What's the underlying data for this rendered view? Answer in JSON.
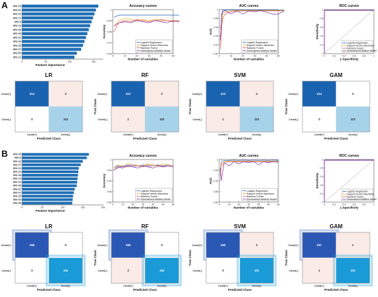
{
  "panels": [
    {
      "label": "A",
      "feature_importance": {
        "xlabel": "Feature importance",
        "features": [
          "MSI 25",
          "MSI 52",
          "MSI 42",
          "MSI 72",
          "MSI 8",
          "MSI 16",
          "MSI 38",
          "MSI 45",
          "MSI 51",
          "MSI 34",
          "MSI 28",
          "MSI 37",
          "MSI 50",
          "MSI 21"
        ],
        "values": [
          160,
          155,
          152,
          149,
          146,
          143,
          140,
          137,
          134,
          131,
          128,
          124,
          115,
          110
        ],
        "xticks": [
          "0",
          "50",
          "100",
          "150"
        ],
        "xmax": 170
      },
      "accuracy": {
        "title": "Accuracy curves",
        "xlabel": "Number of variables",
        "ylabel": "Accuracy",
        "x_ticks": [
          "0",
          "10",
          "20",
          "30",
          "40",
          "50"
        ],
        "y_ticks": [
          "0.96",
          "0.97",
          "0.98",
          "0.99",
          "1"
        ]
      },
      "auc": {
        "title": "AUC curves",
        "xlabel": "Number of variables",
        "ylabel": "AUC",
        "x_ticks": [
          "0",
          "10",
          "20",
          "30",
          "40",
          "50"
        ],
        "y_ticks": [
          "0.90",
          "0.92",
          "0.94",
          "0.96",
          "0.98",
          "1"
        ]
      },
      "roc": {
        "title": "ROC curves",
        "xlabel": "1-Specificity",
        "ylabel": "Sensitivity",
        "ticks": [
          "0",
          "0.2",
          "0.4",
          "0.6",
          "0.8",
          "1"
        ]
      },
      "confusion_matrices": [
        {
          "title": "LR",
          "values": [
            [
              414,
              3
            ],
            [
              0,
              114
            ]
          ]
        },
        {
          "title": "RF",
          "values": [
            [
              413,
              2
            ],
            [
              1,
              115
            ]
          ]
        },
        {
          "title": "SVM",
          "values": [
            [
              413,
              4
            ],
            [
              1,
              113
            ]
          ]
        },
        {
          "title": "GAM",
          "values": [
            [
              414,
              0
            ],
            [
              0,
              113
            ]
          ]
        }
      ]
    },
    {
      "label": "B",
      "feature_importance": {
        "xlabel": "Feature importance",
        "features": [
          "MSI 33",
          "MSI 8",
          "MSI 42",
          "MSI 37",
          "MSI 10",
          "MSI 24",
          "MSI 28",
          "MSI 13",
          "MSI 16",
          "MSI 48",
          "MSI 51",
          "MSI 57",
          "MSI 20",
          "MSI 35",
          "MSI 38"
        ],
        "values": [
          165,
          160,
          150,
          145,
          140,
          139,
          138,
          137,
          136,
          135,
          130,
          128,
          126,
          125,
          124
        ],
        "xticks": [
          "0",
          "50",
          "100",
          "150",
          "200"
        ],
        "xmax": 200
      },
      "accuracy": {
        "title": "Accuracy curves",
        "xlabel": "Number of variables",
        "ylabel": "Accuracy",
        "x_ticks": [
          "0",
          "10",
          "20",
          "30",
          "40",
          "50",
          "60"
        ],
        "y_ticks": [
          "0.80",
          "0.85",
          "0.90",
          "0.95",
          "1"
        ]
      },
      "auc": {
        "title": "AUC curves",
        "xlabel": "Number of variables",
        "ylabel": "AUC",
        "x_ticks": [
          "0",
          "10",
          "20",
          "30",
          "40",
          "50",
          "60"
        ],
        "y_ticks": [
          "0.80",
          "0.85",
          "0.90",
          "0.95",
          "1"
        ]
      },
      "roc": {
        "title": "ROC curves",
        "xlabel": "1-Specificity",
        "ylabel": "Sensitivity",
        "ticks": [
          "0",
          "0.2",
          "0.4",
          "0.6",
          "0.8",
          "1"
        ]
      },
      "confusion_matrices": [
        {
          "title": "LR",
          "values": [
            [
              258,
              0
            ],
            [
              0,
              102
            ]
          ]
        },
        {
          "title": "RF",
          "values": [
            [
              258,
              0
            ],
            [
              2,
              102
            ]
          ]
        },
        {
          "title": "SVM",
          "values": [
            [
              258,
              1
            ],
            [
              0,
              101
            ]
          ]
        },
        {
          "title": "GAM",
          "values": [
            [
              257,
              1
            ],
            [
              1,
              101
            ]
          ]
        }
      ]
    }
  ],
  "legend": [
    "Logistic Regression",
    "Support Vector Machines",
    "Random Forest",
    "Generalized Additive Model"
  ],
  "series_colors": [
    "#1f5fbf",
    "#e8a21c",
    "#d9534f",
    "#7b2d9b"
  ],
  "cm_labels": {
    "true_class": "True Class",
    "predicted_class": "Predicted Class",
    "pos": "Covid(+)",
    "neg": "Covid(-)"
  },
  "chart_data": [
    {
      "type": "bar",
      "title": "",
      "xlabel": "Feature importance",
      "categories": [
        "MSI 25",
        "MSI 52",
        "MSI 42",
        "MSI 72",
        "MSI 8",
        "MSI 16",
        "MSI 38",
        "MSI 45",
        "MSI 51",
        "MSI 34",
        "MSI 28",
        "MSI 37",
        "MSI 50",
        "MSI 21"
      ],
      "values": [
        160,
        155,
        152,
        149,
        146,
        143,
        140,
        137,
        134,
        131,
        128,
        124,
        115,
        110
      ]
    },
    {
      "type": "line",
      "title": "Accuracy curves",
      "xlabel": "Number of variables",
      "ylabel": "Accuracy",
      "ylim": [
        0.96,
        1
      ],
      "x": [
        1,
        5,
        10,
        15,
        20,
        25,
        30,
        35,
        40,
        45,
        50,
        55
      ],
      "series": [
        {
          "name": "Logistic Regression",
          "values": [
            0.993,
            0.995,
            0.995,
            0.995,
            0.995,
            0.995,
            0.995,
            0.995,
            0.995,
            0.995,
            0.995,
            0.995
          ]
        },
        {
          "name": "Support Vector Machines",
          "values": [
            0.985,
            0.99,
            0.992,
            0.991,
            0.99,
            0.991,
            0.99,
            0.991,
            0.99,
            0.99,
            0.99,
            0.99
          ]
        },
        {
          "name": "Random Forest",
          "values": [
            0.98,
            0.988,
            0.99,
            0.989,
            0.991,
            0.99,
            0.989,
            0.99,
            0.991,
            0.99,
            0.989,
            0.99
          ]
        },
        {
          "name": "Generalized Additive Model",
          "values": [
            0.985,
            0.988,
            0.989,
            0.988,
            0.99,
            0.989,
            0.988,
            0.99,
            0.989,
            0.988,
            0.99,
            0.989
          ]
        }
      ]
    },
    {
      "type": "line",
      "title": "AUC curves",
      "xlabel": "Number of variables",
      "ylabel": "AUC",
      "ylim": [
        0.9,
        1
      ],
      "x": [
        1,
        2,
        3,
        5,
        10,
        15,
        20,
        25,
        30,
        35,
        40,
        45,
        50,
        55
      ],
      "series": [
        {
          "name": "Logistic Regression",
          "values": [
            0.93,
            0.99,
            0.999,
            0.999,
            0.999,
            0.999,
            0.999,
            0.999,
            0.999,
            0.999,
            0.999,
            0.999,
            0.999,
            0.999
          ]
        },
        {
          "name": "Support Vector Machines",
          "values": [
            0.92,
            0.97,
            0.99,
            0.995,
            0.997,
            0.998,
            0.998,
            0.998,
            0.998,
            0.998,
            0.998,
            0.998,
            0.998,
            0.998
          ]
        },
        {
          "name": "Random Forest",
          "values": [
            0.91,
            0.96,
            0.98,
            0.99,
            0.995,
            0.997,
            0.997,
            0.997,
            0.997,
            0.997,
            0.997,
            0.997,
            0.997,
            0.997
          ]
        },
        {
          "name": "Generalized Additive Model",
          "values": [
            0.93,
            0.985,
            0.995,
            0.998,
            0.99,
            0.997,
            0.99,
            0.997,
            0.995,
            0.998,
            0.994,
            0.99,
            0.99,
            0.997
          ]
        }
      ]
    },
    {
      "type": "line",
      "title": "ROC curves",
      "xlabel": "1-Specificity",
      "ylabel": "Sensitivity",
      "xlim": [
        0,
        1
      ],
      "ylim": [
        0,
        1
      ]
    },
    {
      "type": "heatmap",
      "title": "LR",
      "values": [
        [
          414,
          3
        ],
        [
          0,
          114
        ]
      ]
    },
    {
      "type": "heatmap",
      "title": "RF",
      "values": [
        [
          413,
          2
        ],
        [
          1,
          115
        ]
      ]
    },
    {
      "type": "heatmap",
      "title": "SVM",
      "values": [
        [
          413,
          4
        ],
        [
          1,
          113
        ]
      ]
    },
    {
      "type": "heatmap",
      "title": "GAM",
      "values": [
        [
          414,
          0
        ],
        [
          0,
          113
        ]
      ]
    },
    {
      "type": "bar",
      "title": "",
      "xlabel": "Feature importance",
      "categories": [
        "MSI 33",
        "MSI 8",
        "MSI 42",
        "MSI 37",
        "MSI 10",
        "MSI 24",
        "MSI 28",
        "MSI 13",
        "MSI 16",
        "MSI 48",
        "MSI 51",
        "MSI 57",
        "MSI 20",
        "MSI 35",
        "MSI 38"
      ],
      "values": [
        165,
        160,
        150,
        145,
        140,
        139,
        138,
        137,
        136,
        135,
        130,
        128,
        126,
        125,
        124
      ]
    },
    {
      "type": "line",
      "title": "Accuracy curves",
      "xlabel": "Number of variables",
      "ylabel": "Accuracy",
      "ylim": [
        0.8,
        1
      ],
      "x": [
        1,
        5,
        10,
        15,
        20,
        25,
        30,
        35,
        40,
        45,
        50,
        55,
        60
      ],
      "series": [
        {
          "name": "Logistic Regression",
          "values": [
            0.96,
            0.97,
            0.965,
            0.975,
            0.97,
            0.97,
            0.975,
            0.97,
            0.97,
            0.975,
            0.97,
            0.975,
            0.97
          ]
        },
        {
          "name": "Support Vector Machines",
          "values": [
            0.96,
            0.975,
            0.97,
            0.98,
            0.975,
            0.972,
            0.97,
            0.98,
            0.975,
            0.97,
            0.978,
            0.975,
            0.97
          ]
        },
        {
          "name": "Random Forest",
          "values": [
            0.95,
            0.96,
            0.97,
            0.965,
            0.975,
            0.97,
            0.965,
            0.975,
            0.97,
            0.972,
            0.968,
            0.97,
            0.972
          ]
        },
        {
          "name": "Generalized Additive Model",
          "values": [
            0.95,
            0.965,
            0.96,
            0.97,
            0.965,
            0.96,
            0.97,
            0.965,
            0.96,
            0.968,
            0.965,
            0.97,
            0.965
          ]
        }
      ]
    },
    {
      "type": "line",
      "title": "AUC curves",
      "xlabel": "Number of variables",
      "ylabel": "AUC",
      "ylim": [
        0.8,
        1
      ],
      "x": [
        1,
        2,
        5,
        10,
        15,
        20,
        25,
        30,
        35,
        40,
        45,
        50,
        55,
        60
      ],
      "series": [
        {
          "name": "Logistic Regression",
          "values": [
            0.93,
            0.99,
            0.995,
            0.996,
            0.997,
            0.996,
            0.997,
            0.996,
            0.997,
            0.996,
            0.997,
            0.996,
            0.997,
            0.996
          ]
        },
        {
          "name": "Support Vector Machines",
          "values": [
            0.94,
            0.98,
            0.99,
            0.993,
            0.992,
            0.993,
            0.992,
            0.993,
            0.992,
            0.993,
            0.992,
            0.993,
            0.992,
            0.993
          ]
        },
        {
          "name": "Random Forest",
          "values": [
            0.92,
            0.97,
            0.985,
            0.99,
            0.99,
            0.989,
            0.99,
            0.991,
            0.99,
            0.989,
            0.99,
            0.99,
            0.989,
            0.99
          ]
        },
        {
          "name": "Generalized Additive Model",
          "values": [
            0.96,
            0.9,
            0.985,
            0.97,
            0.99,
            0.98,
            0.99,
            0.985,
            0.99,
            0.975,
            0.99,
            0.985,
            0.99,
            0.988
          ]
        }
      ]
    },
    {
      "type": "line",
      "title": "ROC curves",
      "xlabel": "1-Specificity",
      "ylabel": "Sensitivity",
      "xlim": [
        0,
        1
      ],
      "ylim": [
        0,
        1
      ]
    },
    {
      "type": "heatmap",
      "title": "LR",
      "values": [
        [
          258,
          0
        ],
        [
          0,
          102
        ]
      ]
    },
    {
      "type": "heatmap",
      "title": "RF",
      "values": [
        [
          258,
          0
        ],
        [
          2,
          102
        ]
      ]
    },
    {
      "type": "heatmap",
      "title": "SVM",
      "values": [
        [
          258,
          1
        ],
        [
          0,
          101
        ]
      ]
    },
    {
      "type": "heatmap",
      "title": "GAM",
      "values": [
        [
          257,
          1
        ],
        [
          1,
          101
        ]
      ]
    }
  ]
}
